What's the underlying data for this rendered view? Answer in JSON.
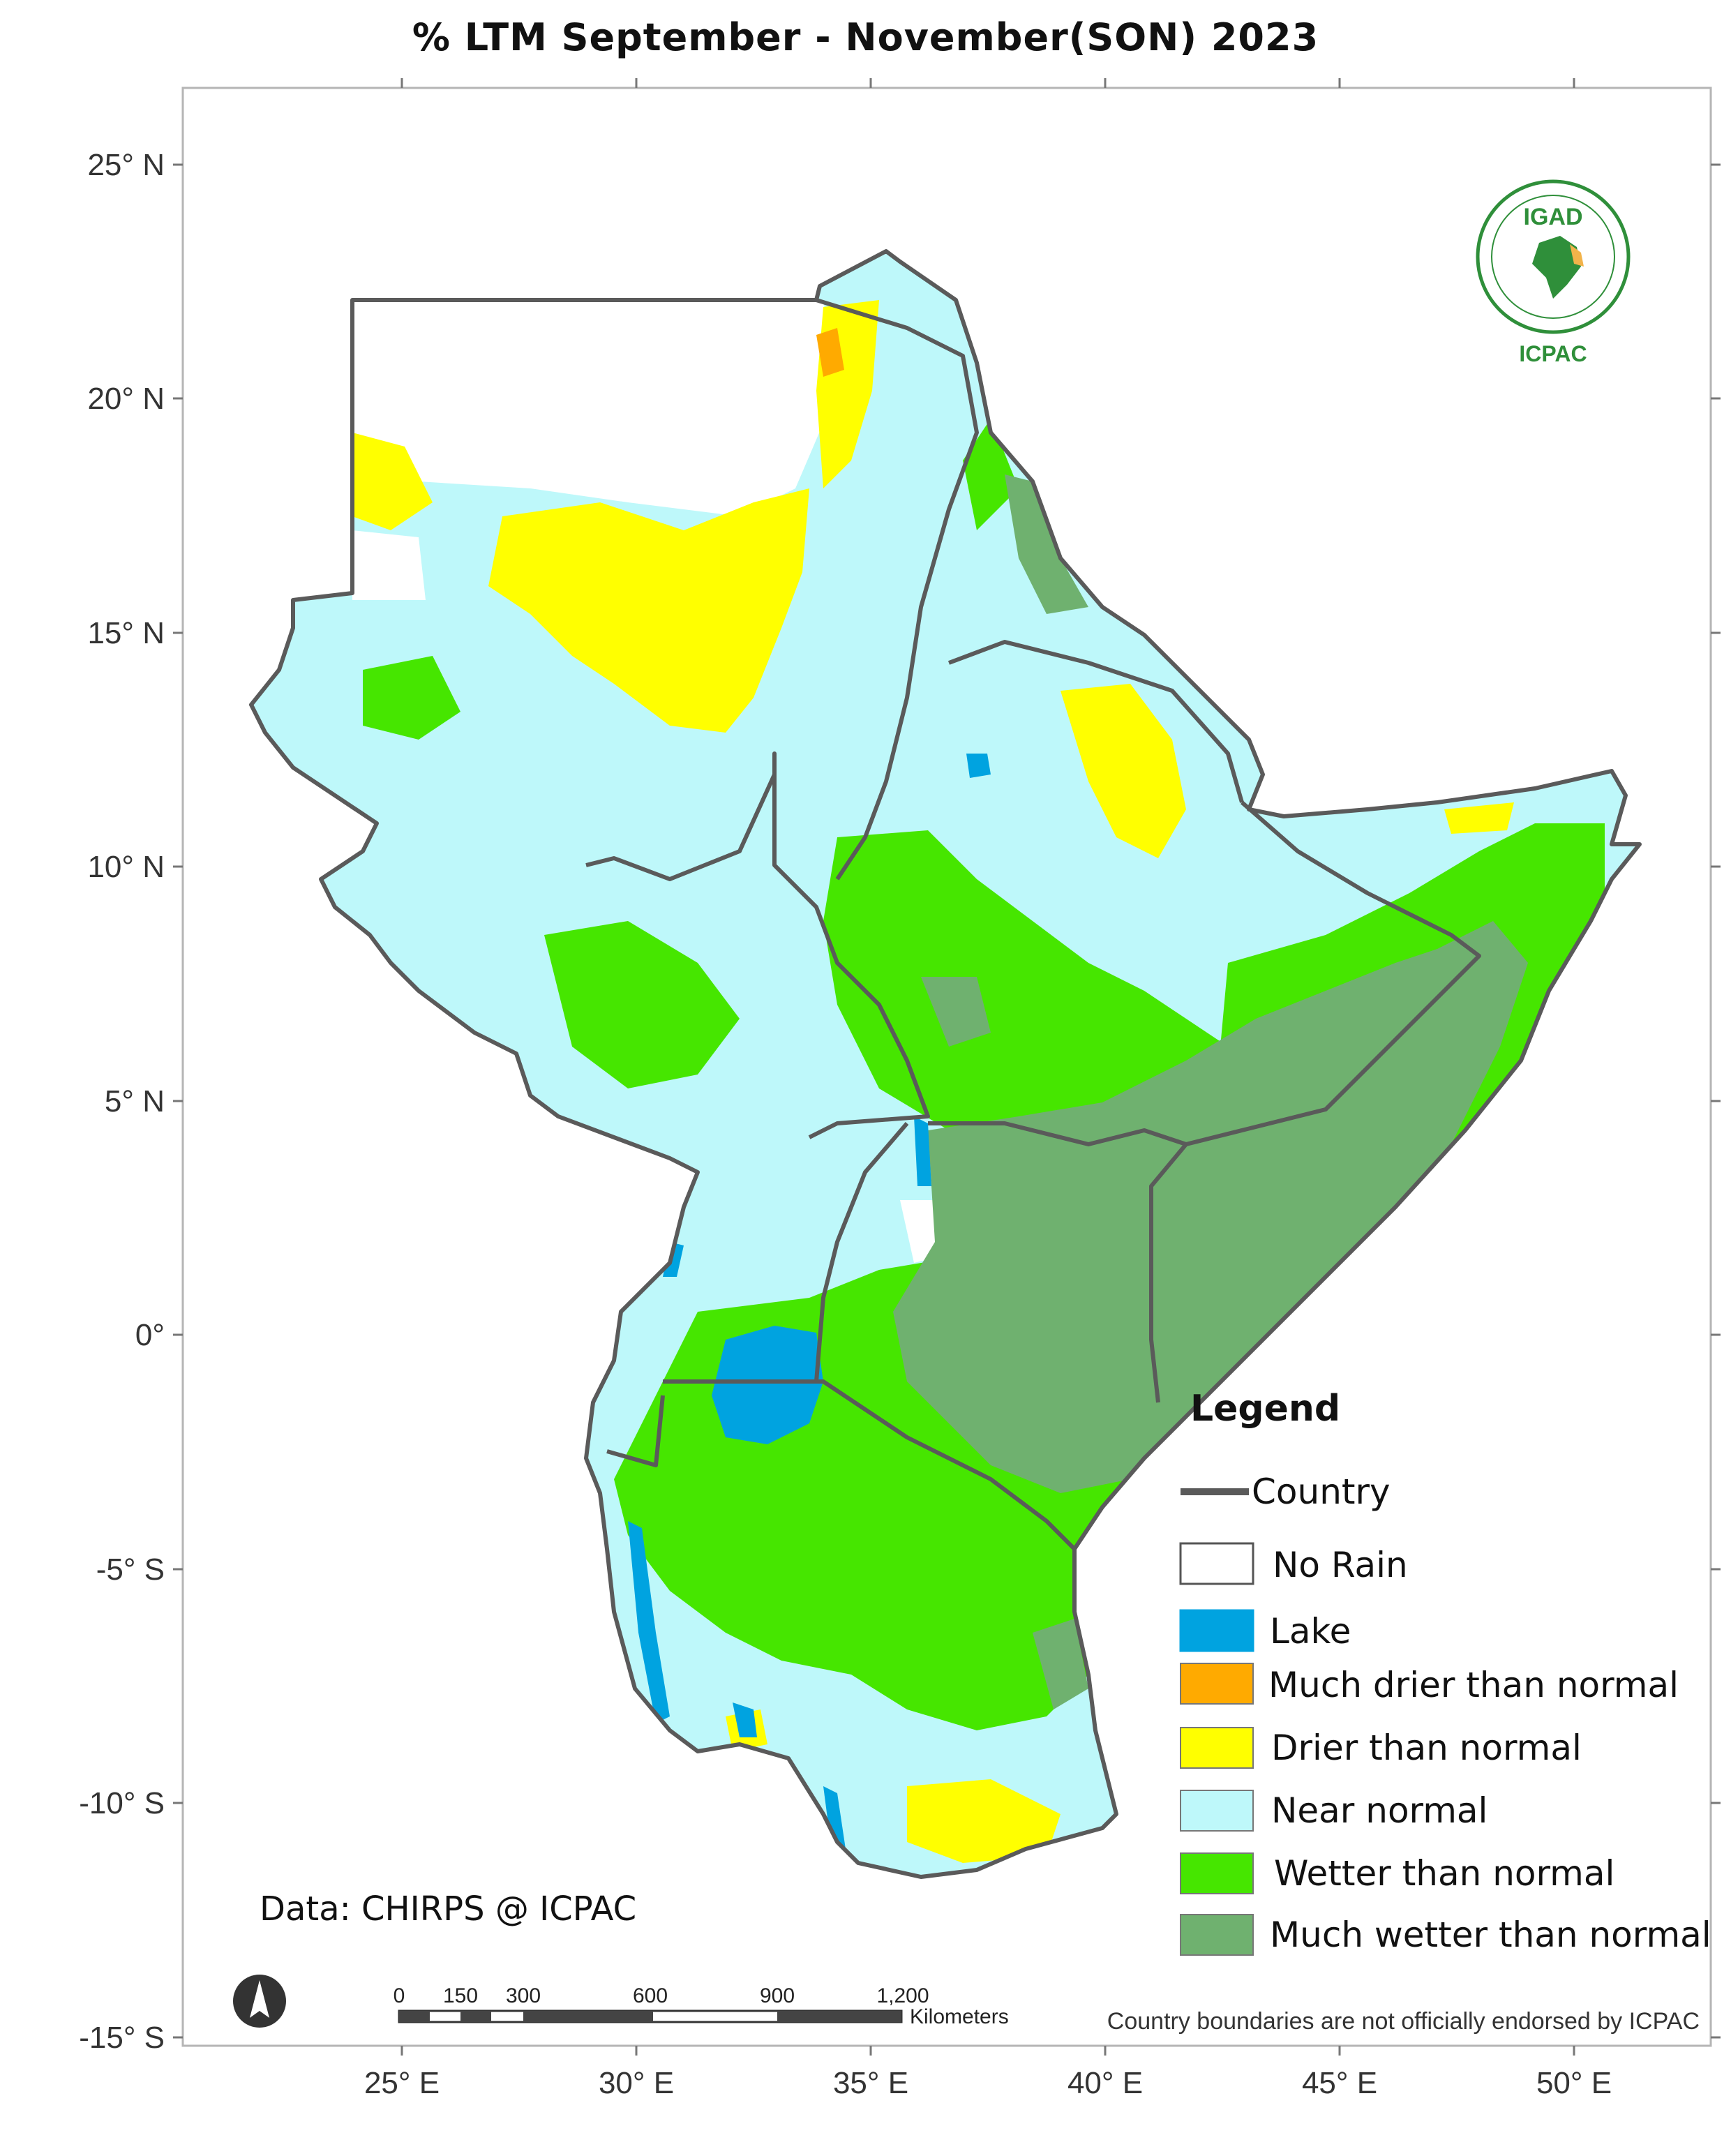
{
  "title": "% LTM  September - November(SON) 2023",
  "axes": {
    "lat_labels": [
      "25° N",
      "20° N",
      "15° N",
      "10° N",
      "5° N",
      "0°",
      "-5° S",
      "-10° S",
      "-15° S"
    ],
    "lon_labels": [
      "25° E",
      "30° E",
      "35° E",
      "40° E",
      "45° E",
      "50° E"
    ]
  },
  "logo": {
    "org": "IGAD",
    "name": "ICPAC"
  },
  "legend": {
    "title": "Legend",
    "country_label": "Country",
    "items": [
      {
        "label": "No Rain",
        "color": "#ffffff"
      },
      {
        "label": "Lake",
        "color": "#00a3e0"
      },
      {
        "label": "Much drier than normal",
        "color": "#ffaa00"
      },
      {
        "label": "Drier than normal",
        "color": "#ffff00"
      },
      {
        "label": "Near normal",
        "color": "#bef8fa"
      },
      {
        "label": "Wetter than normal",
        "color": "#46e600"
      },
      {
        "label": "Much wetter than normal",
        "color": "#6fb16f"
      }
    ]
  },
  "credit": "Data: CHIRPS @ ICPAC",
  "disclaimer": "Country boundaries are not officially endorsed by ICPAC",
  "scale_bar": {
    "ticks": [
      "0",
      "150",
      "300",
      "600",
      "900",
      "1,200"
    ],
    "unit": "Kilometers"
  },
  "north_arrow": "north-arrow-icon"
}
